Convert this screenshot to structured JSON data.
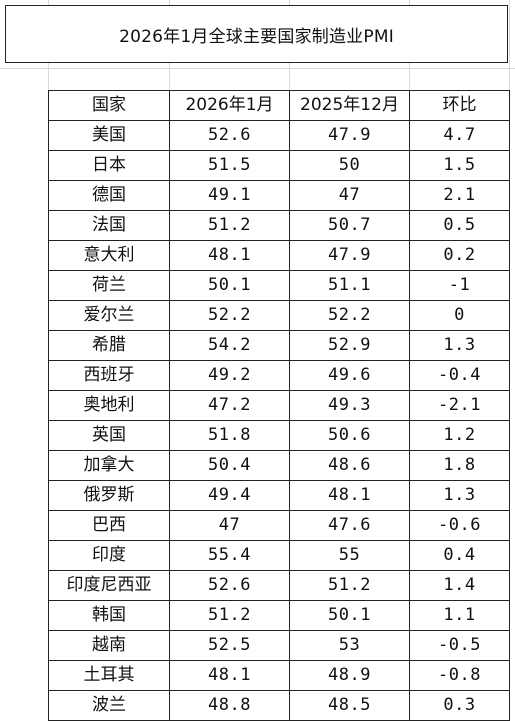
{
  "title": "2026年1月全球主要国家制造业PMI",
  "table": {
    "headers": [
      "国家",
      "2026年1月",
      "2025年12月",
      "环比"
    ],
    "rows": [
      {
        "country": "美国",
        "jan2026": "52.6",
        "dec2025": "47.9",
        "mom": "4.7"
      },
      {
        "country": "日本",
        "jan2026": "51.5",
        "dec2025": "50",
        "mom": "1.5"
      },
      {
        "country": "德国",
        "jan2026": "49.1",
        "dec2025": "47",
        "mom": "2.1"
      },
      {
        "country": "法国",
        "jan2026": "51.2",
        "dec2025": "50.7",
        "mom": "0.5"
      },
      {
        "country": "意大利",
        "jan2026": "48.1",
        "dec2025": "47.9",
        "mom": "0.2"
      },
      {
        "country": "荷兰",
        "jan2026": "50.1",
        "dec2025": "51.1",
        "mom": "-1"
      },
      {
        "country": "爱尔兰",
        "jan2026": "52.2",
        "dec2025": "52.2",
        "mom": "0"
      },
      {
        "country": "希腊",
        "jan2026": "54.2",
        "dec2025": "52.9",
        "mom": "1.3"
      },
      {
        "country": "西班牙",
        "jan2026": "49.2",
        "dec2025": "49.6",
        "mom": "-0.4"
      },
      {
        "country": "奥地利",
        "jan2026": "47.2",
        "dec2025": "49.3",
        "mom": "-2.1"
      },
      {
        "country": "英国",
        "jan2026": "51.8",
        "dec2025": "50.6",
        "mom": "1.2"
      },
      {
        "country": "加拿大",
        "jan2026": "50.4",
        "dec2025": "48.6",
        "mom": "1.8"
      },
      {
        "country": "俄罗斯",
        "jan2026": "49.4",
        "dec2025": "48.1",
        "mom": "1.3"
      },
      {
        "country": "巴西",
        "jan2026": "47",
        "dec2025": "47.6",
        "mom": "-0.6"
      },
      {
        "country": "印度",
        "jan2026": "55.4",
        "dec2025": "55",
        "mom": "0.4"
      },
      {
        "country": "印度尼西亚",
        "jan2026": "52.6",
        "dec2025": "51.2",
        "mom": "1.4"
      },
      {
        "country": "韩国",
        "jan2026": "51.2",
        "dec2025": "50.1",
        "mom": "1.1"
      },
      {
        "country": "越南",
        "jan2026": "52.5",
        "dec2025": "53",
        "mom": "-0.5"
      },
      {
        "country": "土耳其",
        "jan2026": "48.1",
        "dec2025": "48.9",
        "mom": "-0.8"
      },
      {
        "country": "波兰",
        "jan2026": "48.8",
        "dec2025": "48.5",
        "mom": "0.3"
      }
    ]
  }
}
